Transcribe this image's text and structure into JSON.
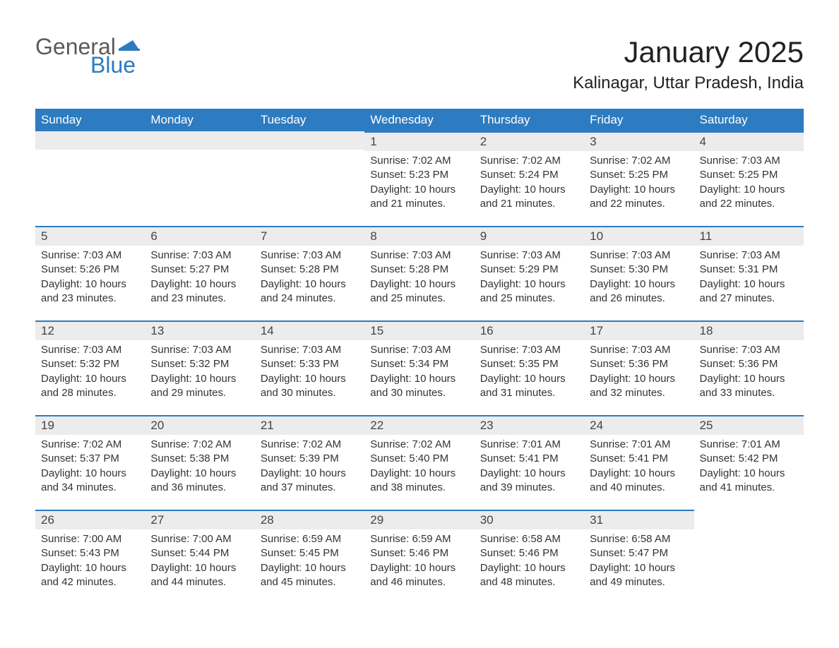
{
  "logo": {
    "general": "General",
    "blue": "Blue",
    "flag_color": "#2d7bc0"
  },
  "title": "January 2025",
  "location": "Kalinagar, Uttar Pradesh, India",
  "colors": {
    "header_bg": "#2d7bc0",
    "header_text": "#ffffff",
    "daynum_bg": "#ececec",
    "border_top": "#2d7bc0",
    "body_text": "#333333"
  },
  "weekdays": [
    "Sunday",
    "Monday",
    "Tuesday",
    "Wednesday",
    "Thursday",
    "Friday",
    "Saturday"
  ],
  "weeks": [
    [
      null,
      null,
      null,
      {
        "n": "1",
        "sr": "Sunrise: 7:02 AM",
        "ss": "Sunset: 5:23 PM",
        "d1": "Daylight: 10 hours",
        "d2": "and 21 minutes."
      },
      {
        "n": "2",
        "sr": "Sunrise: 7:02 AM",
        "ss": "Sunset: 5:24 PM",
        "d1": "Daylight: 10 hours",
        "d2": "and 21 minutes."
      },
      {
        "n": "3",
        "sr": "Sunrise: 7:02 AM",
        "ss": "Sunset: 5:25 PM",
        "d1": "Daylight: 10 hours",
        "d2": "and 22 minutes."
      },
      {
        "n": "4",
        "sr": "Sunrise: 7:03 AM",
        "ss": "Sunset: 5:25 PM",
        "d1": "Daylight: 10 hours",
        "d2": "and 22 minutes."
      }
    ],
    [
      {
        "n": "5",
        "sr": "Sunrise: 7:03 AM",
        "ss": "Sunset: 5:26 PM",
        "d1": "Daylight: 10 hours",
        "d2": "and 23 minutes."
      },
      {
        "n": "6",
        "sr": "Sunrise: 7:03 AM",
        "ss": "Sunset: 5:27 PM",
        "d1": "Daylight: 10 hours",
        "d2": "and 23 minutes."
      },
      {
        "n": "7",
        "sr": "Sunrise: 7:03 AM",
        "ss": "Sunset: 5:28 PM",
        "d1": "Daylight: 10 hours",
        "d2": "and 24 minutes."
      },
      {
        "n": "8",
        "sr": "Sunrise: 7:03 AM",
        "ss": "Sunset: 5:28 PM",
        "d1": "Daylight: 10 hours",
        "d2": "and 25 minutes."
      },
      {
        "n": "9",
        "sr": "Sunrise: 7:03 AM",
        "ss": "Sunset: 5:29 PM",
        "d1": "Daylight: 10 hours",
        "d2": "and 25 minutes."
      },
      {
        "n": "10",
        "sr": "Sunrise: 7:03 AM",
        "ss": "Sunset: 5:30 PM",
        "d1": "Daylight: 10 hours",
        "d2": "and 26 minutes."
      },
      {
        "n": "11",
        "sr": "Sunrise: 7:03 AM",
        "ss": "Sunset: 5:31 PM",
        "d1": "Daylight: 10 hours",
        "d2": "and 27 minutes."
      }
    ],
    [
      {
        "n": "12",
        "sr": "Sunrise: 7:03 AM",
        "ss": "Sunset: 5:32 PM",
        "d1": "Daylight: 10 hours",
        "d2": "and 28 minutes."
      },
      {
        "n": "13",
        "sr": "Sunrise: 7:03 AM",
        "ss": "Sunset: 5:32 PM",
        "d1": "Daylight: 10 hours",
        "d2": "and 29 minutes."
      },
      {
        "n": "14",
        "sr": "Sunrise: 7:03 AM",
        "ss": "Sunset: 5:33 PM",
        "d1": "Daylight: 10 hours",
        "d2": "and 30 minutes."
      },
      {
        "n": "15",
        "sr": "Sunrise: 7:03 AM",
        "ss": "Sunset: 5:34 PM",
        "d1": "Daylight: 10 hours",
        "d2": "and 30 minutes."
      },
      {
        "n": "16",
        "sr": "Sunrise: 7:03 AM",
        "ss": "Sunset: 5:35 PM",
        "d1": "Daylight: 10 hours",
        "d2": "and 31 minutes."
      },
      {
        "n": "17",
        "sr": "Sunrise: 7:03 AM",
        "ss": "Sunset: 5:36 PM",
        "d1": "Daylight: 10 hours",
        "d2": "and 32 minutes."
      },
      {
        "n": "18",
        "sr": "Sunrise: 7:03 AM",
        "ss": "Sunset: 5:36 PM",
        "d1": "Daylight: 10 hours",
        "d2": "and 33 minutes."
      }
    ],
    [
      {
        "n": "19",
        "sr": "Sunrise: 7:02 AM",
        "ss": "Sunset: 5:37 PM",
        "d1": "Daylight: 10 hours",
        "d2": "and 34 minutes."
      },
      {
        "n": "20",
        "sr": "Sunrise: 7:02 AM",
        "ss": "Sunset: 5:38 PM",
        "d1": "Daylight: 10 hours",
        "d2": "and 36 minutes."
      },
      {
        "n": "21",
        "sr": "Sunrise: 7:02 AM",
        "ss": "Sunset: 5:39 PM",
        "d1": "Daylight: 10 hours",
        "d2": "and 37 minutes."
      },
      {
        "n": "22",
        "sr": "Sunrise: 7:02 AM",
        "ss": "Sunset: 5:40 PM",
        "d1": "Daylight: 10 hours",
        "d2": "and 38 minutes."
      },
      {
        "n": "23",
        "sr": "Sunrise: 7:01 AM",
        "ss": "Sunset: 5:41 PM",
        "d1": "Daylight: 10 hours",
        "d2": "and 39 minutes."
      },
      {
        "n": "24",
        "sr": "Sunrise: 7:01 AM",
        "ss": "Sunset: 5:41 PM",
        "d1": "Daylight: 10 hours",
        "d2": "and 40 minutes."
      },
      {
        "n": "25",
        "sr": "Sunrise: 7:01 AM",
        "ss": "Sunset: 5:42 PM",
        "d1": "Daylight: 10 hours",
        "d2": "and 41 minutes."
      }
    ],
    [
      {
        "n": "26",
        "sr": "Sunrise: 7:00 AM",
        "ss": "Sunset: 5:43 PM",
        "d1": "Daylight: 10 hours",
        "d2": "and 42 minutes."
      },
      {
        "n": "27",
        "sr": "Sunrise: 7:00 AM",
        "ss": "Sunset: 5:44 PM",
        "d1": "Daylight: 10 hours",
        "d2": "and 44 minutes."
      },
      {
        "n": "28",
        "sr": "Sunrise: 6:59 AM",
        "ss": "Sunset: 5:45 PM",
        "d1": "Daylight: 10 hours",
        "d2": "and 45 minutes."
      },
      {
        "n": "29",
        "sr": "Sunrise: 6:59 AM",
        "ss": "Sunset: 5:46 PM",
        "d1": "Daylight: 10 hours",
        "d2": "and 46 minutes."
      },
      {
        "n": "30",
        "sr": "Sunrise: 6:58 AM",
        "ss": "Sunset: 5:46 PM",
        "d1": "Daylight: 10 hours",
        "d2": "and 48 minutes."
      },
      {
        "n": "31",
        "sr": "Sunrise: 6:58 AM",
        "ss": "Sunset: 5:47 PM",
        "d1": "Daylight: 10 hours",
        "d2": "and 49 minutes."
      },
      null
    ]
  ]
}
